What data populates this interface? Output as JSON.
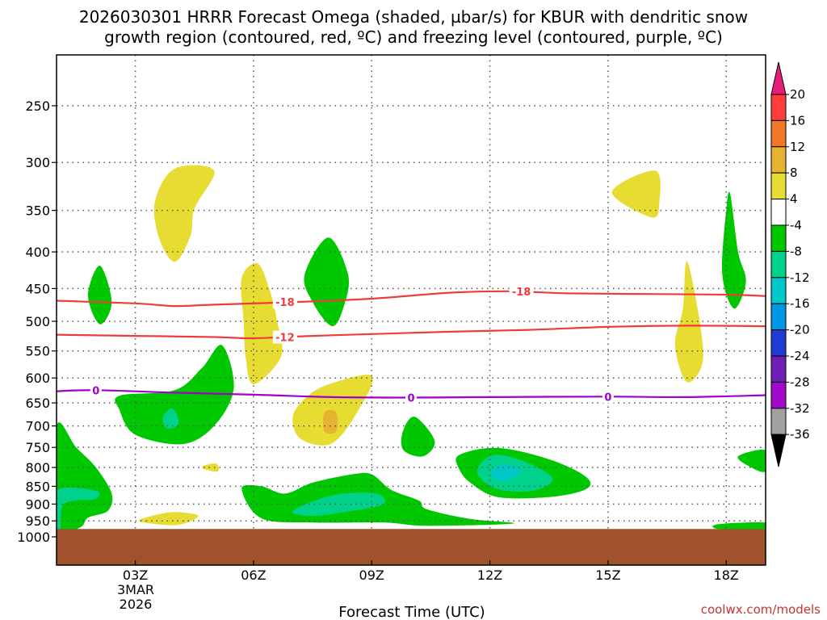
{
  "chart_data": {
    "type": "time-height cross section (filled contour)",
    "title_line1": "2026030301 HRRR Forecast Omega (shaded, µbar/s) for KBUR with dendritic snow",
    "title_line2": "growth region (contoured, red, ºC) and freezing level (contoured, purple, ºC)",
    "xlabel": "Forecast Time (UTC)",
    "x_ticks": [
      "03Z",
      "06Z",
      "09Z",
      "12Z",
      "15Z",
      "18Z"
    ],
    "x_tick_hours": [
      3,
      6,
      9,
      12,
      15,
      18
    ],
    "xlim_hours": [
      1,
      19
    ],
    "date_label": [
      "3MAR",
      "2026"
    ],
    "y_ticks": [
      250,
      300,
      350,
      400,
      450,
      500,
      550,
      600,
      650,
      700,
      750,
      800,
      850,
      900,
      950,
      1000
    ],
    "ylim_hpa": [
      200,
      1040
    ],
    "ground_pressure_hpa": 975,
    "colorbar_levels": [
      20,
      16,
      12,
      8,
      4,
      -4,
      -8,
      -12,
      -16,
      -20,
      -24,
      -28,
      -32,
      -36
    ],
    "colorbar_colors": [
      "#ff3c3c",
      "#f07828",
      "#e6b432",
      "#e6dc32",
      "#ffffff",
      "#00c800",
      "#00d28c",
      "#00c8c8",
      "#0096e6",
      "#1e3cd2",
      "#6e1eb4",
      "#a00ac8",
      "#a0a0a0"
    ],
    "colorbar_top_color": "#e61e78",
    "colorbar_bottom_color": "#000000",
    "contours": [
      {
        "name": "dendritic_top",
        "value": -18,
        "color": "#ee3c3c",
        "points": [
          [
            1,
            468
          ],
          [
            3,
            472
          ],
          [
            4,
            476
          ],
          [
            5,
            474
          ],
          [
            7,
            470
          ],
          [
            9,
            465
          ],
          [
            11,
            456
          ],
          [
            12.5,
            454
          ],
          [
            14,
            457
          ],
          [
            16,
            458
          ],
          [
            18,
            459
          ],
          [
            19,
            461
          ]
        ]
      },
      {
        "name": "dendritic_bottom",
        "value": -12,
        "color": "#ee3c3c",
        "points": [
          [
            1,
            522
          ],
          [
            3,
            524
          ],
          [
            5,
            526
          ],
          [
            6,
            528
          ],
          [
            7.5,
            524
          ],
          [
            9,
            521
          ],
          [
            11,
            517
          ],
          [
            13,
            514
          ],
          [
            15,
            509
          ],
          [
            17,
            507
          ],
          [
            19,
            508
          ]
        ]
      },
      {
        "name": "freezing_level",
        "value": 0,
        "color": "#a000c8",
        "points": [
          [
            1,
            626
          ],
          [
            2,
            624
          ],
          [
            4,
            629
          ],
          [
            6,
            633
          ],
          [
            8,
            638
          ],
          [
            10,
            639
          ],
          [
            12,
            638
          ],
          [
            15,
            637
          ],
          [
            17,
            638
          ],
          [
            19,
            634
          ]
        ]
      }
    ],
    "contour_labels": [
      {
        "text": "-18",
        "hour": 6.8,
        "hpa": 470,
        "color": "#ee3c3c"
      },
      {
        "text": "-18",
        "hour": 12.8,
        "hpa": 454,
        "color": "#ee3c3c"
      },
      {
        "text": "-12",
        "hour": 6.8,
        "hpa": 526,
        "color": "#ee3c3c"
      },
      {
        "text": "0",
        "hour": 2.0,
        "hpa": 624,
        "color": "#a000c8"
      },
      {
        "text": "0",
        "hour": 10.0,
        "hpa": 639,
        "color": "#a000c8"
      },
      {
        "text": "0",
        "hour": 15.0,
        "hpa": 637,
        "color": "#a000c8"
      }
    ],
    "omega_regions": [
      {
        "value": 6,
        "color": "#e6dc32",
        "points": [
          [
            3.5,
            340
          ],
          [
            4.0,
            306
          ],
          [
            5.0,
            308
          ],
          [
            4.5,
            348
          ],
          [
            4.4,
            380
          ],
          [
            4.0,
            413
          ],
          [
            3.6,
            382
          ]
        ]
      },
      {
        "value": 6,
        "color": "#e6dc32",
        "points": [
          [
            5.7,
            435
          ],
          [
            6.1,
            415
          ],
          [
            6.4,
            450
          ],
          [
            6.6,
            500
          ],
          [
            6.7,
            560
          ],
          [
            6.0,
            612
          ],
          [
            5.8,
            560
          ],
          [
            5.75,
            500
          ]
        ]
      },
      {
        "value": 6,
        "color": "#e6dc32",
        "points": [
          [
            7.0,
            678
          ],
          [
            7.4,
            634
          ],
          [
            8.0,
            610
          ],
          [
            9.0,
            596
          ],
          [
            8.7,
            660
          ],
          [
            8.0,
            740
          ],
          [
            7.2,
            730
          ]
        ]
      },
      {
        "value": 6,
        "color": "#e6dc32",
        "points": [
          [
            15.1,
            330
          ],
          [
            16.2,
            308
          ],
          [
            16.3,
            342
          ],
          [
            16.1,
            358
          ]
        ]
      },
      {
        "value": 6,
        "color": "#e6dc32",
        "points": [
          [
            16.9,
            480
          ],
          [
            17.0,
            412
          ],
          [
            17.3,
            490
          ],
          [
            17.4,
            570
          ],
          [
            17.0,
            608
          ],
          [
            16.7,
            540
          ]
        ]
      },
      {
        "value": 6,
        "color": "#e6dc32",
        "points": [
          [
            3.1,
            947
          ],
          [
            3.8,
            925
          ],
          [
            4.3,
            926
          ],
          [
            4.6,
            937
          ],
          [
            4.1,
            962
          ],
          [
            3.4,
            958
          ]
        ]
      },
      {
        "value": 6,
        "color": "#e6dc32",
        "points": [
          [
            4.7,
            797
          ],
          [
            5.05,
            790
          ],
          [
            5.1,
            810
          ],
          [
            4.8,
            806
          ]
        ]
      },
      {
        "value": 10,
        "color": "#e6b432",
        "points": [
          [
            7.8,
            670
          ],
          [
            8.1,
            670
          ],
          [
            8.1,
            712
          ],
          [
            7.8,
            712
          ]
        ]
      },
      {
        "value": -6,
        "color": "#00c800",
        "points": [
          [
            1.8,
            460
          ],
          [
            2.1,
            418
          ],
          [
            2.4,
            470
          ],
          [
            2.1,
            505
          ]
        ]
      },
      {
        "value": -6,
        "color": "#00c800",
        "points": [
          [
            7.3,
            430
          ],
          [
            7.9,
            382
          ],
          [
            8.4,
            430
          ],
          [
            8.3,
            475
          ],
          [
            8.0,
            508
          ],
          [
            7.5,
            470
          ]
        ]
      },
      {
        "value": -6,
        "color": "#00c800",
        "points": [
          [
            2.6,
            635
          ],
          [
            4.0,
            624
          ],
          [
            4.7,
            580
          ],
          [
            5.2,
            540
          ],
          [
            5.5,
            620
          ],
          [
            5.0,
            700
          ],
          [
            4.2,
            742
          ],
          [
            3.0,
            720
          ],
          [
            2.6,
            665
          ]
        ]
      },
      {
        "value": -6,
        "color": "#00c800",
        "points": [
          [
            9.8,
            710
          ],
          [
            10.1,
            680
          ],
          [
            10.6,
            735
          ],
          [
            10.3,
            772
          ],
          [
            9.8,
            756
          ]
        ]
      },
      {
        "value": -6,
        "color": "#00c800",
        "points": [
          [
            18.0,
            350
          ],
          [
            18.1,
            332
          ],
          [
            18.3,
            400
          ],
          [
            18.5,
            440
          ],
          [
            18.2,
            480
          ],
          [
            17.9,
            430
          ]
        ]
      },
      {
        "value": -6,
        "color": "#00c800",
        "points": [
          [
            18.3,
            772
          ],
          [
            19.0,
            757
          ],
          [
            19.0,
            810
          ],
          [
            18.6,
            798
          ]
        ]
      },
      {
        "value": -6,
        "color": "#00c800",
        "points": [
          [
            11.2,
            770
          ],
          [
            11.9,
            752
          ],
          [
            12.7,
            758
          ],
          [
            13.8,
            790
          ],
          [
            14.5,
            830
          ],
          [
            14.4,
            860
          ],
          [
            13.5,
            880
          ],
          [
            12.2,
            880
          ],
          [
            11.5,
            840
          ],
          [
            11.2,
            800
          ]
        ]
      },
      {
        "value": -6,
        "color": "#00c800",
        "points": [
          [
            1.0,
            700
          ],
          [
            1.5,
            750
          ],
          [
            2.0,
            800
          ],
          [
            2.4,
            870
          ],
          [
            2.3,
            920
          ],
          [
            1.8,
            940
          ],
          [
            1.6,
            970
          ],
          [
            1.0,
            975
          ]
        ]
      },
      {
        "value": -6,
        "color": "#00c800",
        "points": [
          [
            5.7,
            856
          ],
          [
            6.2,
            850
          ],
          [
            6.8,
            870
          ],
          [
            7.5,
            840
          ],
          [
            8.5,
            818
          ],
          [
            9.0,
            818
          ],
          [
            9.5,
            860
          ],
          [
            10.2,
            890
          ],
          [
            10.4,
            915
          ],
          [
            11.5,
            944
          ],
          [
            12.6,
            958
          ],
          [
            10.4,
            965
          ],
          [
            9.3,
            955
          ],
          [
            7.5,
            955
          ],
          [
            6.2,
            942
          ]
        ]
      },
      {
        "value": -6,
        "color": "#00c800",
        "points": [
          [
            17.8,
            960
          ],
          [
            19.0,
            955
          ],
          [
            19.0,
            975
          ],
          [
            17.8,
            975
          ]
        ]
      },
      {
        "value": -10,
        "color": "#00d28c",
        "points": [
          [
            3.7,
            680
          ],
          [
            3.95,
            662
          ],
          [
            4.1,
            695
          ],
          [
            3.8,
            706
          ]
        ]
      },
      {
        "value": -10,
        "color": "#00d28c",
        "points": [
          [
            11.8,
            786
          ],
          [
            12.2,
            768
          ],
          [
            13.0,
            790
          ],
          [
            13.6,
            830
          ],
          [
            13.1,
            862
          ],
          [
            12.2,
            858
          ],
          [
            11.7,
            820
          ]
        ]
      },
      {
        "value": -10,
        "color": "#00d28c",
        "points": [
          [
            1.0,
            862
          ],
          [
            2.0,
            862
          ],
          [
            2.0,
            885
          ],
          [
            1.5,
            890
          ],
          [
            1.15,
            905
          ],
          [
            1.1,
            975
          ],
          [
            1.0,
            975
          ]
        ]
      },
      {
        "value": -10,
        "color": "#00d28c",
        "points": [
          [
            7.0,
            920
          ],
          [
            8.0,
            875
          ],
          [
            9.1,
            870
          ],
          [
            9.3,
            900
          ],
          [
            8.5,
            920
          ],
          [
            7.5,
            935
          ]
        ]
      },
      {
        "value": -14,
        "color": "#00c8c8",
        "points": [
          [
            12.05,
            805
          ],
          [
            12.4,
            792
          ],
          [
            12.8,
            810
          ],
          [
            12.4,
            835
          ],
          [
            12.1,
            828
          ]
        ]
      }
    ]
  },
  "credit": "coolwx.com/models"
}
